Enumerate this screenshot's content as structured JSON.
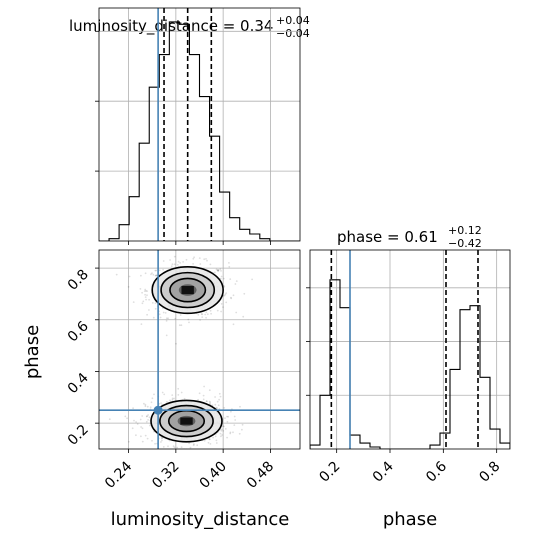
{
  "chart_data": {
    "type": "corner",
    "parameters": [
      "luminosity_distance",
      "phase"
    ],
    "truth": {
      "luminosity_distance": 0.29,
      "phase": 0.25
    },
    "truth_color": "#4682b4",
    "line_color": "#000000",
    "grid": true,
    "panels": [
      {
        "id": "luminosity_distance_hist",
        "type": "histogram",
        "parameter": "luminosity_distance",
        "title": "luminosity_distance = 0.34",
        "title_sup": "+0.04",
        "title_sub": "−0.04",
        "xlim": [
          0.19,
          0.53
        ],
        "ylim": [
          0,
          1.0
        ],
        "bin_edges": [
          0.19,
          0.207,
          0.224,
          0.241,
          0.258,
          0.275,
          0.292,
          0.309,
          0.326,
          0.343,
          0.36,
          0.377,
          0.394,
          0.411,
          0.428,
          0.445,
          0.462,
          0.479,
          0.496,
          0.513,
          0.53
        ],
        "counts": [
          0.0,
          0.01,
          0.07,
          0.19,
          0.42,
          0.66,
          0.8,
          0.94,
          0.93,
          0.8,
          0.62,
          0.45,
          0.21,
          0.1,
          0.05,
          0.03,
          0.01,
          0.0,
          0.0,
          0.0
        ],
        "quantiles": [
          0.3,
          0.34,
          0.38
        ],
        "truth": 0.29
      },
      {
        "id": "phase_hist",
        "type": "histogram",
        "parameter": "phase",
        "title": "phase = 0.61",
        "title_sup": "+0.12",
        "title_sub": "−0.42",
        "xlim": [
          0.1,
          0.85
        ],
        "ylim": [
          0,
          1.0
        ],
        "bin_edges": [
          0.1,
          0.1375,
          0.175,
          0.2125,
          0.25,
          0.2875,
          0.325,
          0.3625,
          0.4,
          0.4375,
          0.475,
          0.5125,
          0.55,
          0.5875,
          0.625,
          0.6625,
          0.7,
          0.7375,
          0.775,
          0.8125,
          0.85
        ],
        "counts": [
          0.02,
          0.27,
          0.85,
          0.71,
          0.07,
          0.03,
          0.01,
          0.0,
          0.0,
          0.0,
          0.0,
          0.0,
          0.02,
          0.08,
          0.4,
          0.7,
          0.72,
          0.36,
          0.1,
          0.03
        ],
        "quantiles": [
          0.18,
          0.61,
          0.73
        ],
        "truth": 0.25
      },
      {
        "id": "joint_2d",
        "type": "contour",
        "x_parameter": "luminosity_distance",
        "y_parameter": "phase",
        "xlim": [
          0.19,
          0.53
        ],
        "ylim": [
          0.1,
          0.87
        ],
        "modes": [
          {
            "center": [
              0.34,
              0.715
            ],
            "sigma": [
              0.03,
              0.045
            ]
          },
          {
            "center": [
              0.338,
              0.208
            ],
            "sigma": [
              0.03,
              0.04
            ]
          }
        ]
      }
    ],
    "axes": {
      "x_bottom_left": {
        "label": "luminosity_distance",
        "ticks": [
          0.24,
          0.32,
          0.4,
          0.48
        ],
        "tick_labels": [
          "0.24",
          "0.32",
          "0.40",
          "0.48"
        ]
      },
      "y_left": {
        "label": "phase",
        "ticks": [
          0.2,
          0.4,
          0.6,
          0.8
        ],
        "tick_labels": [
          "0.2",
          "0.4",
          "0.6",
          "0.8"
        ]
      },
      "x_bottom_right": {
        "label": "phase",
        "ticks": [
          0.2,
          0.4,
          0.6,
          0.8
        ],
        "tick_labels": [
          "0.2",
          "0.4",
          "0.6",
          "0.8"
        ]
      }
    }
  }
}
